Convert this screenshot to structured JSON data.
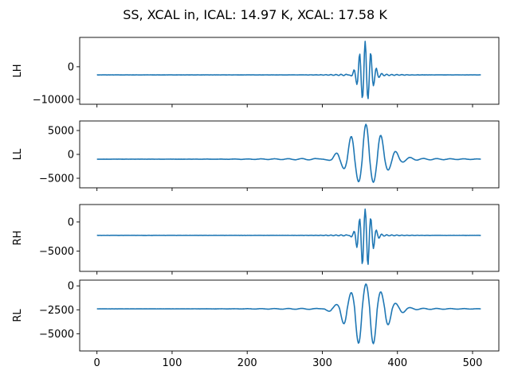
{
  "chart_data": {
    "type": "line",
    "title": "SS, XCAL in, ICAL: 14.97 K, XCAL: 17.58 K",
    "line_color": "#1f77b4",
    "x_ticks": [
      0,
      100,
      200,
      300,
      400,
      500
    ],
    "x_tick_labels": [
      "0",
      "100",
      "200",
      "300",
      "400",
      "500"
    ],
    "xlim": [
      -23,
      535
    ],
    "grid": false,
    "panels": [
      {
        "ylabel": "LH",
        "ylim": [
          -11500,
          9000
        ],
        "y_ticks": [
          0,
          -10000
        ],
        "y_tick_labels": [
          "0",
          "−10000"
        ],
        "baseline": -2500,
        "peak_max": 7800,
        "peak_min": -10700,
        "center": 357,
        "width": 8,
        "period": 7.5
      },
      {
        "ylabel": "LL",
        "ylim": [
          -7000,
          7000
        ],
        "y_ticks": [
          5000,
          0,
          -5000
        ],
        "y_tick_labels": [
          "5000",
          "0",
          "−5000"
        ],
        "baseline": -1000,
        "peak_max": 6300,
        "peak_min": -6300,
        "center": 358,
        "width": 22,
        "period": 20
      },
      {
        "ylabel": "RH",
        "ylim": [
          -8500,
          3000
        ],
        "y_ticks": [
          0,
          -5000
        ],
        "y_tick_labels": [
          "0",
          "−5000"
        ],
        "baseline": -2300,
        "peak_max": 2200,
        "peak_min": -8000,
        "center": 357,
        "width": 8,
        "period": 7.5
      },
      {
        "ylabel": "RL",
        "ylim": [
          -6800,
          600
        ],
        "y_ticks": [
          0,
          -2500,
          -5000
        ],
        "y_tick_labels": [
          "0",
          "−2500",
          "−5000"
        ],
        "baseline": -2400,
        "peak_max": 200,
        "peak_min": -6400,
        "center": 358,
        "width": 22,
        "period": 20
      }
    ],
    "n_points": 512
  }
}
